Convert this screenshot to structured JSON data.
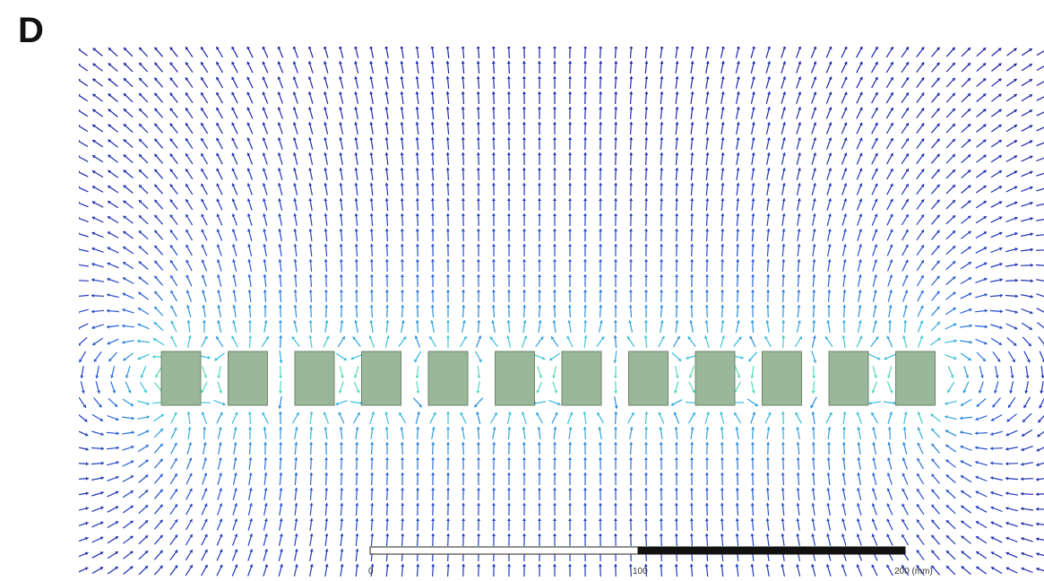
{
  "figure": {
    "panel_letter": "D"
  },
  "scale_bar": {
    "tick_labels": [
      "0",
      "100",
      "200 (mm)"
    ]
  },
  "conductors": {
    "count": 12,
    "fill_color": "#9bb79a",
    "edge_color": "#6b876a"
  },
  "field_colormap": [
    "#1a1a9e",
    "#2a5fd6",
    "#34b6e0",
    "#4fd8c8",
    "#7fe07a",
    "#e0d83a",
    "#f08a2a",
    "#e0242a"
  ]
}
